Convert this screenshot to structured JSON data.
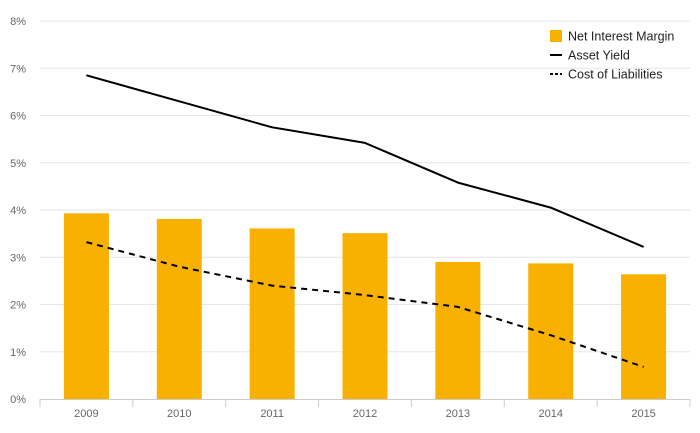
{
  "chart_data": {
    "type": "bar",
    "categories": [
      "2009",
      "2010",
      "2011",
      "2012",
      "2013",
      "2014",
      "2015"
    ],
    "series": [
      {
        "name": "Net Interest Margin",
        "kind": "bar",
        "color": "#f8b100",
        "values": [
          3.93,
          3.81,
          3.61,
          3.51,
          2.9,
          2.87,
          2.64
        ]
      },
      {
        "name": "Asset Yield",
        "kind": "line",
        "dash": "solid",
        "color": "#000000",
        "values": [
          6.85,
          6.3,
          5.75,
          5.42,
          4.58,
          4.05,
          3.22
        ]
      },
      {
        "name": "Cost of Liabilities",
        "kind": "line",
        "dash": "dashed",
        "color": "#000000",
        "values": [
          3.32,
          2.8,
          2.4,
          2.2,
          1.95,
          1.35,
          0.68
        ]
      }
    ],
    "y_ticks": [
      "0%",
      "1%",
      "2%",
      "3%",
      "4%",
      "5%",
      "6%",
      "7%",
      "8%"
    ],
    "ylim": [
      0,
      8
    ],
    "grid": "horizontal",
    "legend_position": "top-right",
    "title": "",
    "xlabel": "",
    "ylabel": ""
  }
}
